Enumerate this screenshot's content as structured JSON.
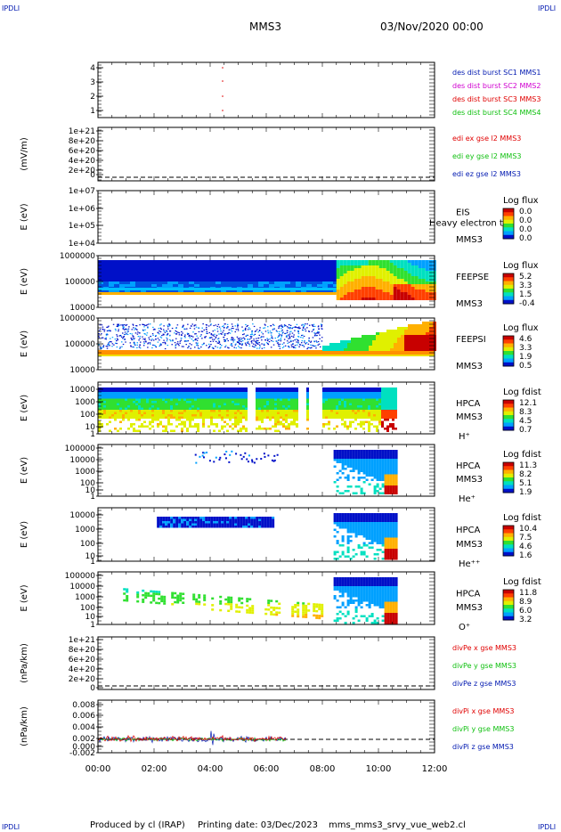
{
  "corner": {
    "tl": "IPDLI",
    "tr": "IPDLI",
    "bl": "IPDLI",
    "br": "IPDLI"
  },
  "header": {
    "spacecraft": "MMS3",
    "date": "03/Nov/2020 00:00"
  },
  "footer": {
    "produced": "Produced by cl (IRAP)",
    "printed": "Printing date: 03/Dec/2023",
    "script": "mms_mms3_srvy_vue_web2.cl"
  },
  "colors": {
    "red": "#e00000",
    "green": "#10c010",
    "blue": "#0018b0",
    "magenta": "#d000d0",
    "cmap": [
      "#0010c8",
      "#00a0ff",
      "#00e0c0",
      "#30e030",
      "#e0f000",
      "#ffb000",
      "#ff4000",
      "#c80000"
    ]
  },
  "chart_data": {
    "type": "multi-panel time series",
    "x_ticks": [
      "00:00",
      "02:00",
      "04:00",
      "06:00",
      "08:00",
      "10:00",
      "12:00"
    ],
    "x_range_hours": [
      0,
      12
    ],
    "panels": [
      {
        "id": "burst",
        "type": "scatter",
        "ylabel": "",
        "y_ticks": [
          "4",
          "3",
          "2",
          "1"
        ],
        "legend": [
          {
            "text": "des dist burst SC1 MMS1",
            "color": "#0018b0"
          },
          {
            "text": "des dist burst SC2 MMS2",
            "color": "#d000d0"
          },
          {
            "text": "des dist burst SC3 MMS3",
            "color": "#e00000"
          },
          {
            "text": "des dist burst SC4 MMS4",
            "color": "#10c010"
          }
        ]
      },
      {
        "id": "edi",
        "type": "line",
        "ylabel": "(mV/m)",
        "y_ticks": [
          "1e+21",
          "8e+20",
          "6e+20",
          "4e+20",
          "2e+20",
          "0"
        ],
        "legend": [
          {
            "text": "edi ex gse l2 MMS3",
            "color": "#e00000"
          },
          {
            "text": "edi ey gse l2 MMS3",
            "color": "#10c010"
          },
          {
            "text": "edi ez gse l2 MMS3",
            "color": "#0018b0"
          }
        ]
      },
      {
        "id": "eis",
        "type": "heatmap",
        "ylabel": "E (eV)",
        "y_ticks": [
          "1e+07",
          "1e+06",
          "1e+05",
          "1e+04"
        ],
        "instrument": "EIS",
        "spacecraft": "MMS3",
        "extra": "Heavy electron to",
        "cbar_title": "Log flux",
        "cbar_ticks": [
          "0.0",
          "0.0",
          "0.0",
          "0.0"
        ]
      },
      {
        "id": "feepse",
        "type": "heatmap",
        "ylabel": "E (eV)",
        "y_ticks": [
          "1000000",
          "100000",
          "10000"
        ],
        "instrument": "FEEPSE",
        "spacecraft": "MMS3",
        "cbar_title": "Log flux",
        "cbar_ticks": [
          "5.2",
          "3.3",
          "1.5",
          "-0.4"
        ]
      },
      {
        "id": "feepsi",
        "type": "heatmap",
        "ylabel": "E (eV)",
        "y_ticks": [
          "1000000",
          "100000",
          "10000"
        ],
        "instrument": "FEEPSI",
        "spacecraft": "MMS3",
        "cbar_title": "Log flux",
        "cbar_ticks": [
          "4.6",
          "3.3",
          "1.9",
          "0.5"
        ]
      },
      {
        "id": "hpca_h",
        "type": "heatmap",
        "ylabel": "E (eV)",
        "y_ticks": [
          "10000",
          "1000",
          "100",
          "10",
          "1"
        ],
        "instrument": "HPCA",
        "spacecraft": "MMS3",
        "species": "H⁺",
        "cbar_title": "Log fdist",
        "cbar_ticks": [
          "12.1",
          "8.3",
          "4.5",
          "0.7"
        ]
      },
      {
        "id": "hpca_he",
        "type": "heatmap",
        "ylabel": "E (eV)",
        "y_ticks": [
          "100000",
          "10000",
          "1000",
          "100",
          "10",
          "1"
        ],
        "instrument": "HPCA",
        "spacecraft": "MMS3",
        "species": "He⁺",
        "cbar_title": "Log fdist",
        "cbar_ticks": [
          "11.3",
          "8.2",
          "5.1",
          "1.9"
        ]
      },
      {
        "id": "hpca_he2",
        "type": "heatmap",
        "ylabel": "E (eV)",
        "y_ticks": [
          "10000",
          "1000",
          "100",
          "10",
          "1"
        ],
        "instrument": "HPCA",
        "spacecraft": "MMS3",
        "species": "He⁺⁺",
        "cbar_title": "Log fdist",
        "cbar_ticks": [
          "10.4",
          "7.5",
          "4.6",
          "1.6"
        ]
      },
      {
        "id": "hpca_o",
        "type": "heatmap",
        "ylabel": "E (eV)",
        "y_ticks": [
          "100000",
          "10000",
          "1000",
          "100",
          "10",
          "1"
        ],
        "instrument": "HPCA",
        "spacecraft": "MMS3",
        "species": "O⁺",
        "cbar_title": "Log fdist",
        "cbar_ticks": [
          "11.8",
          "8.9",
          "6.0",
          "3.2"
        ]
      },
      {
        "id": "divpe",
        "type": "line",
        "ylabel": "(nPa/km)",
        "y_ticks": [
          "1e+21",
          "8e+20",
          "6e+20",
          "4e+20",
          "2e+20",
          "0"
        ],
        "legend": [
          {
            "text": "divPe x gse MMS3",
            "color": "#e00000"
          },
          {
            "text": "divPe y gse MMS3",
            "color": "#10c010"
          },
          {
            "text": "divPe z gse MMS3",
            "color": "#0018b0"
          }
        ]
      },
      {
        "id": "divpi",
        "type": "line",
        "ylabel": "(nPa/km)",
        "y_ticks": [
          "0.008",
          "0.006",
          "0.004",
          "0.002",
          "0.000",
          "-0.002"
        ],
        "y_range": [
          -0.003,
          0.009
        ],
        "legend": [
          {
            "text": "divPi x gse MMS3",
            "color": "#e00000"
          },
          {
            "text": "divPi y gse MMS3",
            "color": "#10c010"
          },
          {
            "text": "divPi z gse MMS3",
            "color": "#0018b0"
          }
        ]
      }
    ]
  }
}
